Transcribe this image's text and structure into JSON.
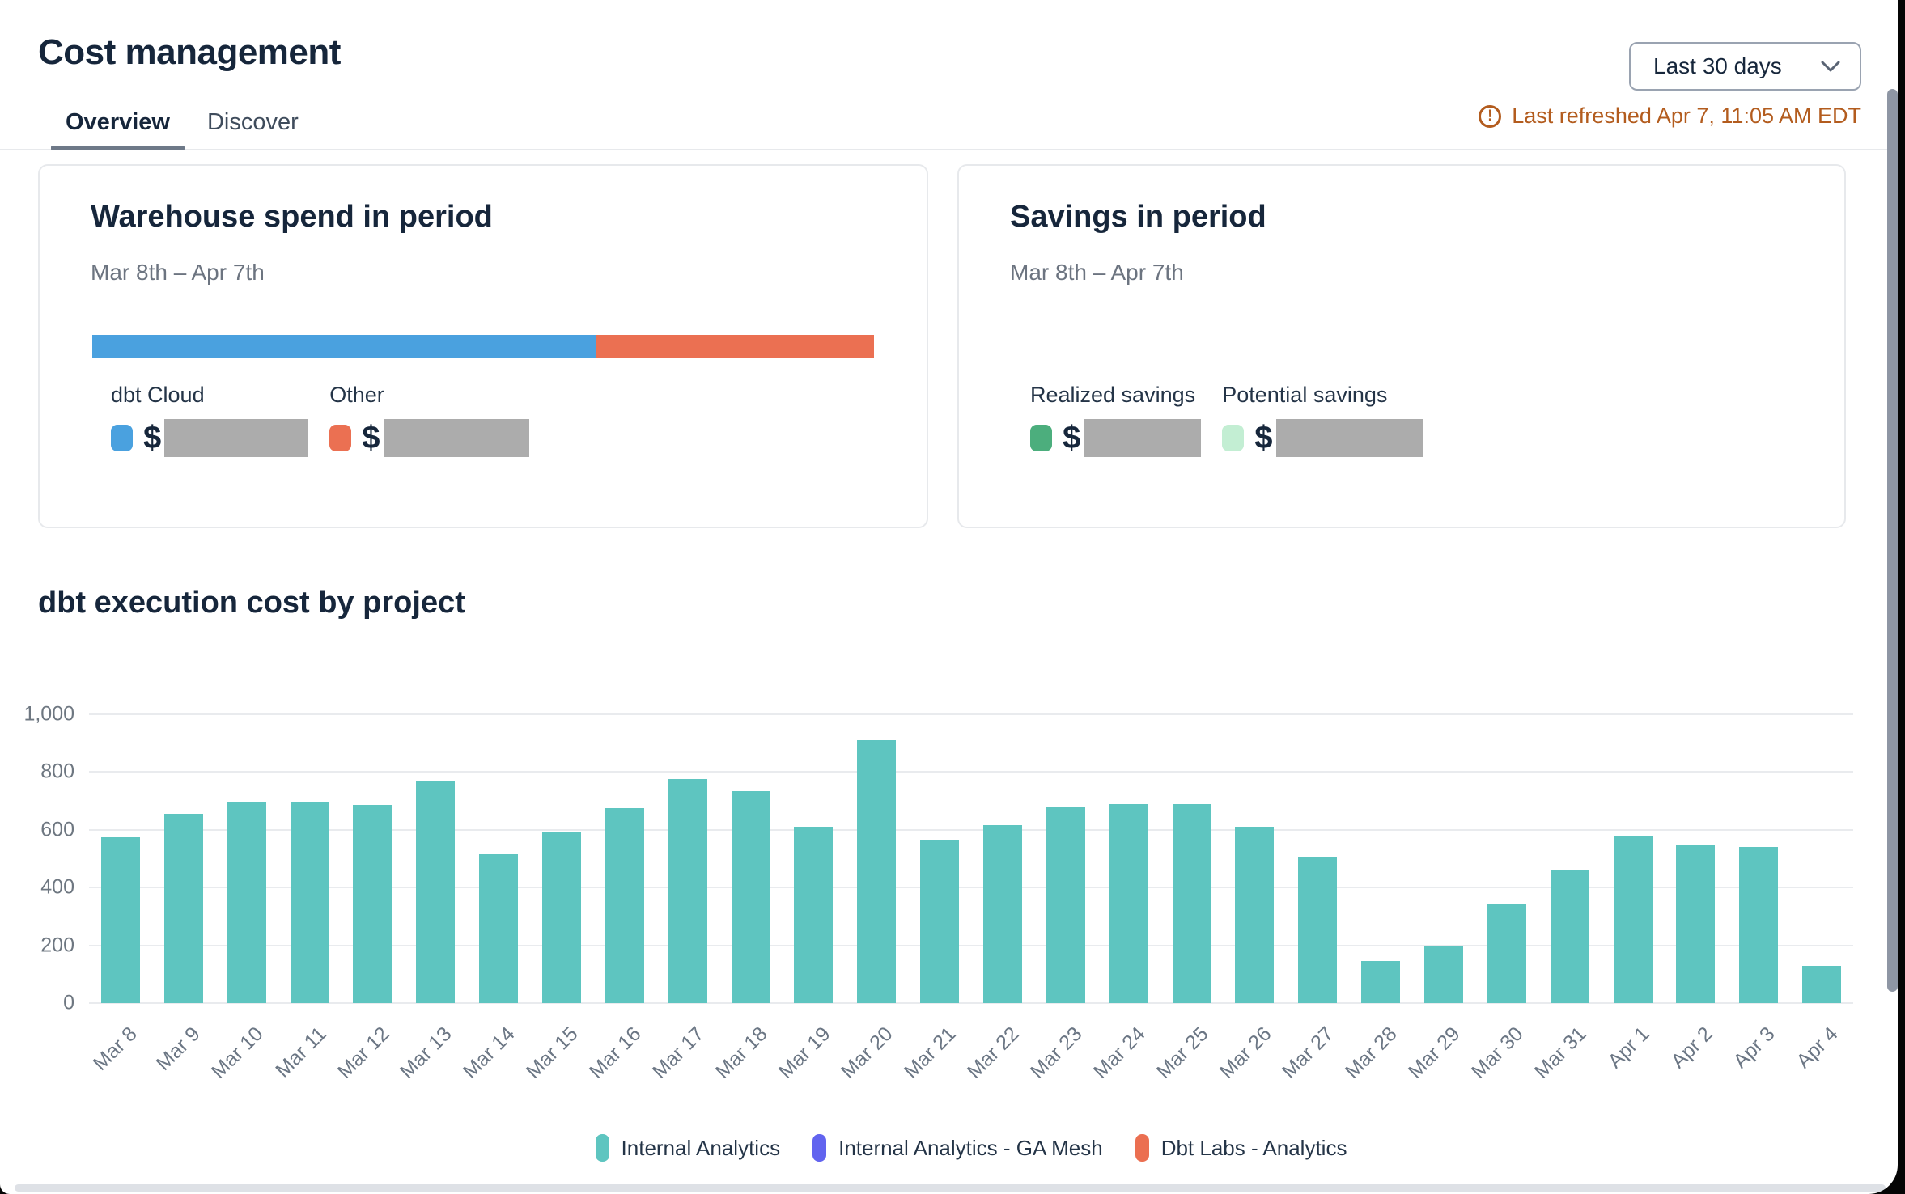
{
  "header": {
    "title": "Cost management",
    "period_dropdown": {
      "value": "Last 30 days"
    },
    "last_refreshed": "Last refreshed Apr 7, 11:05 AM EDT",
    "last_refreshed_color": "#B35C1E"
  },
  "tabs": [
    {
      "label": "Overview",
      "active": true
    },
    {
      "label": "Discover",
      "active": false
    }
  ],
  "warehouse_card": {
    "title": "Warehouse spend in period",
    "subtitle": "Mar 8th – Apr 7th",
    "stacked_bar": {
      "segments": [
        {
          "label": "dbt Cloud",
          "color": "#4AA1DF",
          "pct": 64.5
        },
        {
          "label": "Other",
          "color": "#EB7052",
          "pct": 35.5
        }
      ]
    },
    "legend": [
      {
        "label": "dbt Cloud",
        "swatch_color": "#4AA1DF",
        "currency": "$",
        "value_redacted": true,
        "redact_width": 178
      },
      {
        "label": "Other",
        "swatch_color": "#EB7052",
        "currency": "$",
        "value_redacted": true,
        "redact_width": 180
      }
    ]
  },
  "savings_card": {
    "title": "Savings in period",
    "subtitle": "Mar 8th – Apr 7th",
    "legend": [
      {
        "label": "Realized savings",
        "swatch_color": "#4CAE7D",
        "currency": "$",
        "value_redacted": true,
        "redact_width": 145
      },
      {
        "label": "Potential savings",
        "swatch_color": "#C3EED3",
        "currency": "$",
        "value_redacted": true,
        "redact_width": 182
      }
    ]
  },
  "redaction_color": "#ACACAC",
  "chart_section_title": "dbt execution cost by project",
  "chart_data": {
    "type": "bar",
    "title": "dbt execution cost by project",
    "categories": [
      "Mar 8",
      "Mar 9",
      "Mar 10",
      "Mar 11",
      "Mar 12",
      "Mar 13",
      "Mar 14",
      "Mar 15",
      "Mar 16",
      "Mar 17",
      "Mar 18",
      "Mar 19",
      "Mar 20",
      "Mar 21",
      "Mar 22",
      "Mar 23",
      "Mar 24",
      "Mar 25",
      "Mar 26",
      "Mar 27",
      "Mar 28",
      "Mar 29",
      "Mar 30",
      "Mar 31",
      "Apr 1",
      "Apr 2",
      "Apr 3",
      "Apr 4"
    ],
    "series": [
      {
        "name": "Internal Analytics",
        "color": "#5EC5C0",
        "values": [
          575,
          655,
          695,
          695,
          685,
          770,
          515,
          590,
          675,
          775,
          735,
          610,
          910,
          565,
          615,
          680,
          690,
          690,
          610,
          505,
          145,
          195,
          345,
          460,
          580,
          545,
          540,
          130
        ]
      },
      {
        "name": "Internal Analytics - GA Mesh",
        "color": "#6264EF",
        "values": [
          0,
          0,
          0,
          0,
          0,
          0,
          0,
          0,
          0,
          0,
          0,
          0,
          0,
          0,
          0,
          0,
          0,
          0,
          0,
          0,
          0,
          0,
          0,
          0,
          0,
          0,
          0,
          0
        ]
      },
      {
        "name": "Dbt Labs - Analytics",
        "color": "#EB6F51",
        "values": [
          0,
          0,
          0,
          0,
          0,
          0,
          0,
          0,
          0,
          0,
          0,
          0,
          0,
          0,
          0,
          0,
          0,
          0,
          0,
          0,
          0,
          0,
          0,
          0,
          0,
          0,
          0,
          0
        ]
      }
    ],
    "xlabel": "",
    "ylabel": "",
    "ylim": [
      0,
      1000
    ],
    "yticks": [
      0,
      200,
      400,
      600,
      800,
      1000
    ],
    "ytick_labels": [
      "0",
      "200",
      "400",
      "600",
      "800",
      "1,000"
    ],
    "grid": true,
    "legend_position": "bottom"
  }
}
